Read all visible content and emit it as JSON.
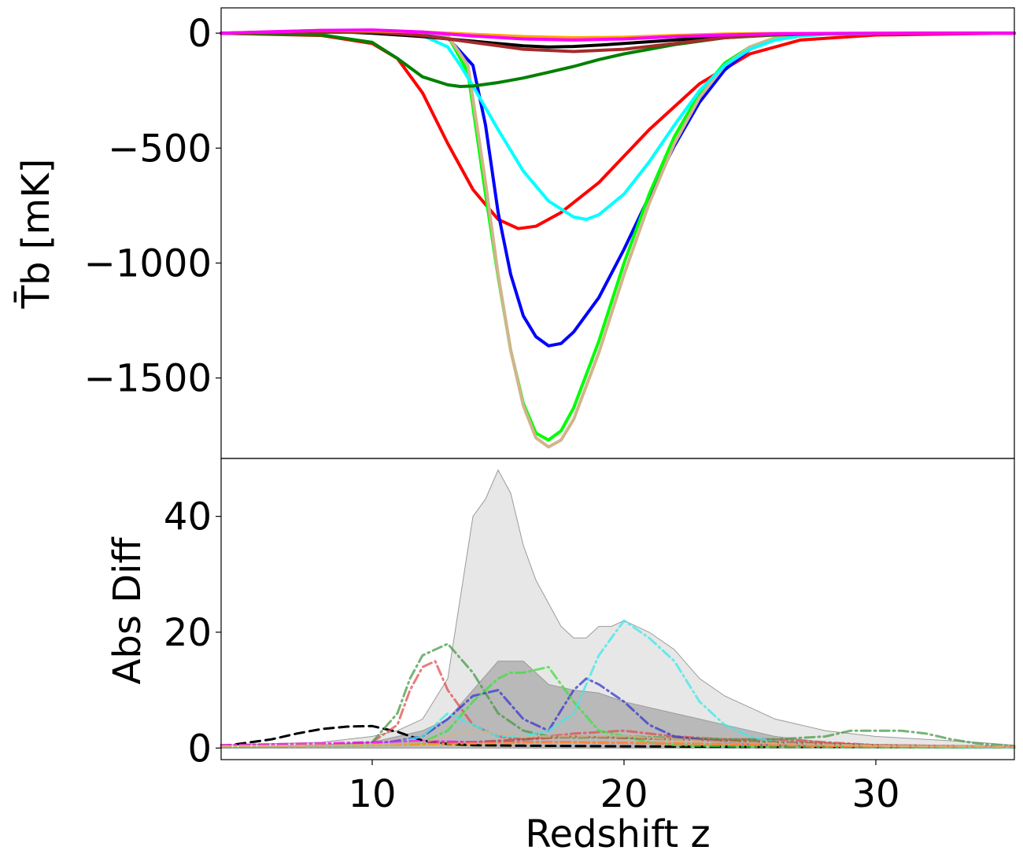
{
  "chart_data": [
    {
      "type": "line",
      "panel": "top",
      "ylabel": "T̄b [mK]",
      "xlim": [
        4,
        35.5
      ],
      "ylim": [
        -1850,
        110
      ],
      "yticks": [
        0,
        -500,
        -1000,
        -1500
      ],
      "ytick_labels": [
        "0",
        "−500",
        "−1000",
        "−1500"
      ],
      "grid": false,
      "series": [
        {
          "color": "#ff0000",
          "x": [
            4,
            8,
            10,
            11,
            12,
            13,
            14,
            15,
            15.8,
            16.5,
            17.5,
            19,
            21,
            23,
            25,
            27,
            30,
            35.5
          ],
          "values": [
            0,
            -10,
            -45,
            -110,
            -260,
            -480,
            -680,
            -810,
            -850,
            -840,
            -780,
            -650,
            -420,
            -220,
            -90,
            -30,
            -8,
            0
          ]
        },
        {
          "color": "#0000ff",
          "x": [
            4,
            10,
            12,
            13,
            14,
            14.5,
            15,
            15.5,
            16,
            16.5,
            17,
            17.5,
            18,
            19,
            20,
            21,
            22,
            23,
            24,
            25,
            26,
            27,
            28,
            30,
            35.5
          ],
          "values": [
            0,
            10,
            5,
            -20,
            -140,
            -400,
            -780,
            -1050,
            -1230,
            -1320,
            -1360,
            -1350,
            -1300,
            -1150,
            -940,
            -710,
            -490,
            -300,
            -160,
            -70,
            -25,
            -10,
            -4,
            -1,
            0
          ]
        },
        {
          "color": "#00ff00",
          "x": [
            4,
            10,
            12,
            13,
            13.8,
            14.5,
            15,
            15.5,
            16,
            16.5,
            17,
            17.5,
            18,
            19,
            20,
            21,
            22,
            23,
            24,
            25,
            26,
            27,
            28,
            30,
            35.5
          ],
          "values": [
            0,
            10,
            5,
            -10,
            -170,
            -700,
            -1060,
            -1380,
            -1610,
            -1740,
            -1770,
            -1730,
            -1630,
            -1340,
            -1000,
            -700,
            -450,
            -260,
            -130,
            -60,
            -20,
            -8,
            -3,
            -1,
            0
          ]
        },
        {
          "color": "#d2b48c",
          "x": [
            4,
            10,
            12,
            13,
            13.8,
            14.5,
            15,
            15.5,
            16,
            16.5,
            17,
            17.5,
            18,
            19,
            20,
            21,
            22,
            23,
            24,
            25,
            26,
            27,
            28,
            30,
            35.5
          ],
          "values": [
            0,
            10,
            5,
            -10,
            -140,
            -650,
            -1050,
            -1380,
            -1620,
            -1760,
            -1800,
            -1770,
            -1680,
            -1390,
            -1050,
            -740,
            -480,
            -280,
            -140,
            -60,
            -20,
            -8,
            -3,
            -1,
            0
          ]
        },
        {
          "color": "#00ffff",
          "x": [
            4,
            10,
            12,
            13,
            13.5,
            14,
            15,
            16,
            17,
            18,
            18.5,
            19,
            20,
            21,
            22,
            23,
            24,
            25,
            26,
            27,
            28,
            30,
            35.5
          ],
          "values": [
            0,
            8,
            -10,
            -60,
            -140,
            -230,
            -420,
            -600,
            -730,
            -800,
            -810,
            -790,
            -700,
            -560,
            -400,
            -250,
            -140,
            -70,
            -30,
            -12,
            -5,
            -1,
            0
          ]
        },
        {
          "color": "#008000",
          "x": [
            4,
            8,
            10,
            11,
            12,
            13,
            13.5,
            14,
            15,
            16,
            17,
            18,
            19,
            20,
            22,
            24,
            26,
            28,
            35.5
          ],
          "values": [
            0,
            -8,
            -40,
            -110,
            -190,
            -225,
            -232,
            -230,
            -215,
            -195,
            -170,
            -145,
            -115,
            -90,
            -50,
            -20,
            -8,
            -2,
            0
          ]
        },
        {
          "color": "#000000",
          "x": [
            4,
            8,
            10,
            12,
            14,
            16,
            17,
            18,
            19,
            20,
            22,
            24,
            26,
            28,
            35.5
          ],
          "values": [
            0,
            10,
            0,
            -15,
            -35,
            -55,
            -60,
            -58,
            -52,
            -45,
            -30,
            -15,
            -5,
            -1,
            0
          ]
        },
        {
          "color": "#a52a2a",
          "x": [
            4,
            10,
            12,
            14,
            16,
            18,
            20,
            22,
            24,
            26,
            28,
            35.5
          ],
          "values": [
            0,
            5,
            -10,
            -40,
            -70,
            -80,
            -70,
            -45,
            -20,
            -5,
            -1,
            0
          ]
        },
        {
          "color": "#ffa500",
          "x": [
            4,
            8,
            10,
            12,
            14,
            16,
            18,
            20,
            22,
            24,
            26,
            35.5
          ],
          "values": [
            0,
            12,
            10,
            5,
            -5,
            -15,
            -20,
            -18,
            -10,
            -4,
            -1,
            0
          ]
        },
        {
          "color": "#ff00ff",
          "x": [
            4,
            6,
            8,
            10,
            12,
            14,
            16,
            18,
            20,
            22,
            24,
            26,
            28,
            35.5
          ],
          "values": [
            0,
            6,
            12,
            14,
            5,
            -12,
            -25,
            -30,
            -25,
            -15,
            -8,
            -3,
            -1,
            0
          ]
        }
      ]
    },
    {
      "type": "line",
      "panel": "bottom",
      "xlabel": "Redshift z",
      "ylabel": "Abs Diff",
      "xlim": [
        4,
        35.5
      ],
      "ylim": [
        -2,
        50
      ],
      "xticks": [
        10,
        20,
        30
      ],
      "xtick_labels": [
        "10",
        "20",
        "30"
      ],
      "yticks": [
        0,
        20,
        40
      ],
      "ytick_labels": [
        "0",
        "20",
        "40"
      ],
      "grid": false,
      "shaded_regions": [
        {
          "color": "#e4e4e4",
          "x": [
            4,
            8,
            10,
            11,
            12,
            13,
            13.5,
            14,
            14.5,
            15,
            15.5,
            16,
            16.5,
            17,
            17.5,
            18,
            18.5,
            19,
            19.5,
            20,
            21,
            22,
            23,
            24,
            25,
            26,
            27,
            28,
            30,
            32,
            34,
            35.5
          ],
          "values": [
            0.5,
            1,
            2,
            3,
            5,
            12,
            26,
            40,
            43,
            48,
            44,
            35,
            29,
            25,
            21,
            19,
            19,
            21,
            21,
            22,
            20,
            17,
            12,
            9,
            7,
            5,
            4,
            3,
            2,
            1.5,
            1,
            0.5
          ]
        },
        {
          "color": "#b4b4b4",
          "x": [
            4,
            8,
            10,
            11,
            12,
            13,
            14,
            15,
            15.5,
            16,
            16.5,
            17,
            18,
            19,
            20,
            21,
            22,
            23,
            24,
            25,
            26,
            28,
            30,
            35.5
          ],
          "values": [
            0,
            0.5,
            1,
            2,
            3,
            5,
            10,
            15,
            15,
            15,
            13,
            11,
            10,
            9.5,
            8,
            7,
            6,
            5,
            4,
            3,
            2,
            1,
            0.5,
            0
          ]
        }
      ],
      "series": [
        {
          "color": "#000000",
          "style": "dashed",
          "x": [
            4,
            6,
            7,
            8,
            9,
            10,
            11,
            12,
            13,
            14,
            16,
            20,
            25,
            30,
            35.5
          ],
          "values": [
            0.3,
            1.5,
            2.5,
            3.3,
            3.7,
            3.8,
            2.8,
            1.3,
            0.7,
            0.5,
            0.4,
            0.3,
            0.2,
            0.2,
            0.2
          ]
        },
        {
          "color": "#e05050",
          "style": "dashdot",
          "x": [
            4,
            8,
            10,
            11,
            11.5,
            12,
            12.5,
            13,
            14,
            15,
            16,
            17,
            18,
            20,
            22,
            24,
            26,
            28,
            30,
            35.5
          ],
          "values": [
            0.2,
            0.5,
            1,
            4,
            10,
            14,
            15,
            10,
            4,
            2,
            1.5,
            2,
            2.5,
            3,
            2,
            1.5,
            1.5,
            1,
            0.5,
            0.2
          ]
        },
        {
          "color": "#4a9a4a",
          "style": "dashdot",
          "x": [
            4,
            8,
            10,
            11,
            11.5,
            12,
            13,
            14,
            15,
            16,
            17,
            18,
            20,
            24,
            26,
            28,
            29,
            30,
            31,
            32,
            33,
            34,
            35.5
          ],
          "values": [
            0.5,
            0.5,
            1,
            6,
            12,
            16,
            18,
            13,
            6,
            3,
            2,
            1.8,
            2,
            1.5,
            1.5,
            2,
            3,
            3,
            3,
            2.5,
            1.5,
            0.8,
            0.3
          ]
        },
        {
          "color": "#3a3ad0",
          "style": "dashdot",
          "x": [
            4,
            8,
            10,
            12,
            13,
            14,
            15,
            16,
            17,
            18,
            18.5,
            19,
            20,
            21,
            22,
            24,
            26,
            28,
            35.5
          ],
          "values": [
            0.2,
            0.3,
            0.5,
            2,
            5,
            9,
            10,
            5,
            3,
            10,
            12,
            11,
            8,
            4,
            2,
            1,
            0.5,
            0.3,
            0.1
          ]
        },
        {
          "color": "#40e040",
          "style": "dashdot",
          "x": [
            4,
            8,
            10,
            12,
            13,
            14,
            15,
            15.5,
            16,
            17,
            18,
            19,
            20,
            21,
            22,
            24,
            26,
            35.5
          ],
          "values": [
            0.2,
            0.3,
            0.5,
            1,
            3,
            8,
            12,
            13,
            13,
            14,
            8,
            3,
            2,
            1,
            0.5,
            0.3,
            0.2,
            0.1
          ]
        },
        {
          "color": "#40e8e8",
          "style": "dashdot",
          "x": [
            4,
            8,
            10,
            11,
            12,
            13,
            14,
            15,
            16,
            17,
            18,
            19,
            20,
            21,
            22,
            23,
            24,
            25,
            26,
            28,
            35.5
          ],
          "values": [
            0.2,
            0.3,
            0.5,
            1,
            2,
            6,
            4,
            2,
            2,
            3,
            6,
            16,
            22,
            19,
            15,
            8,
            4,
            2,
            1,
            0.5,
            0.1
          ]
        },
        {
          "color": "#a0522d",
          "style": "dashdot",
          "x": [
            4,
            10,
            14,
            18,
            22,
            26,
            30,
            35.5
          ],
          "values": [
            0.2,
            0.5,
            1,
            2,
            1.5,
            1,
            0.5,
            0.2
          ]
        },
        {
          "color": "#ff00ff",
          "style": "dashdot",
          "x": [
            4,
            8,
            10,
            12,
            14,
            18,
            22,
            26,
            30,
            35.5
          ],
          "values": [
            0.5,
            0.8,
            1,
            1.2,
            1,
            1,
            0.8,
            0.5,
            0.3,
            0.2
          ]
        },
        {
          "color": "#ffa500",
          "style": "dashdot",
          "x": [
            4,
            10,
            14,
            18,
            22,
            26,
            30,
            35.5
          ],
          "values": [
            0.3,
            0.5,
            0.8,
            1,
            0.8,
            0.5,
            0.3,
            0.2
          ]
        },
        {
          "color": "#d2b48c",
          "style": "dashdot",
          "x": [
            4,
            10,
            12,
            14,
            16,
            18,
            20,
            22,
            24,
            26,
            30,
            35.5
          ],
          "values": [
            0.3,
            0.5,
            1,
            3,
            2,
            2,
            2,
            1.5,
            1,
            0.8,
            0.4,
            0.2
          ]
        }
      ]
    }
  ]
}
